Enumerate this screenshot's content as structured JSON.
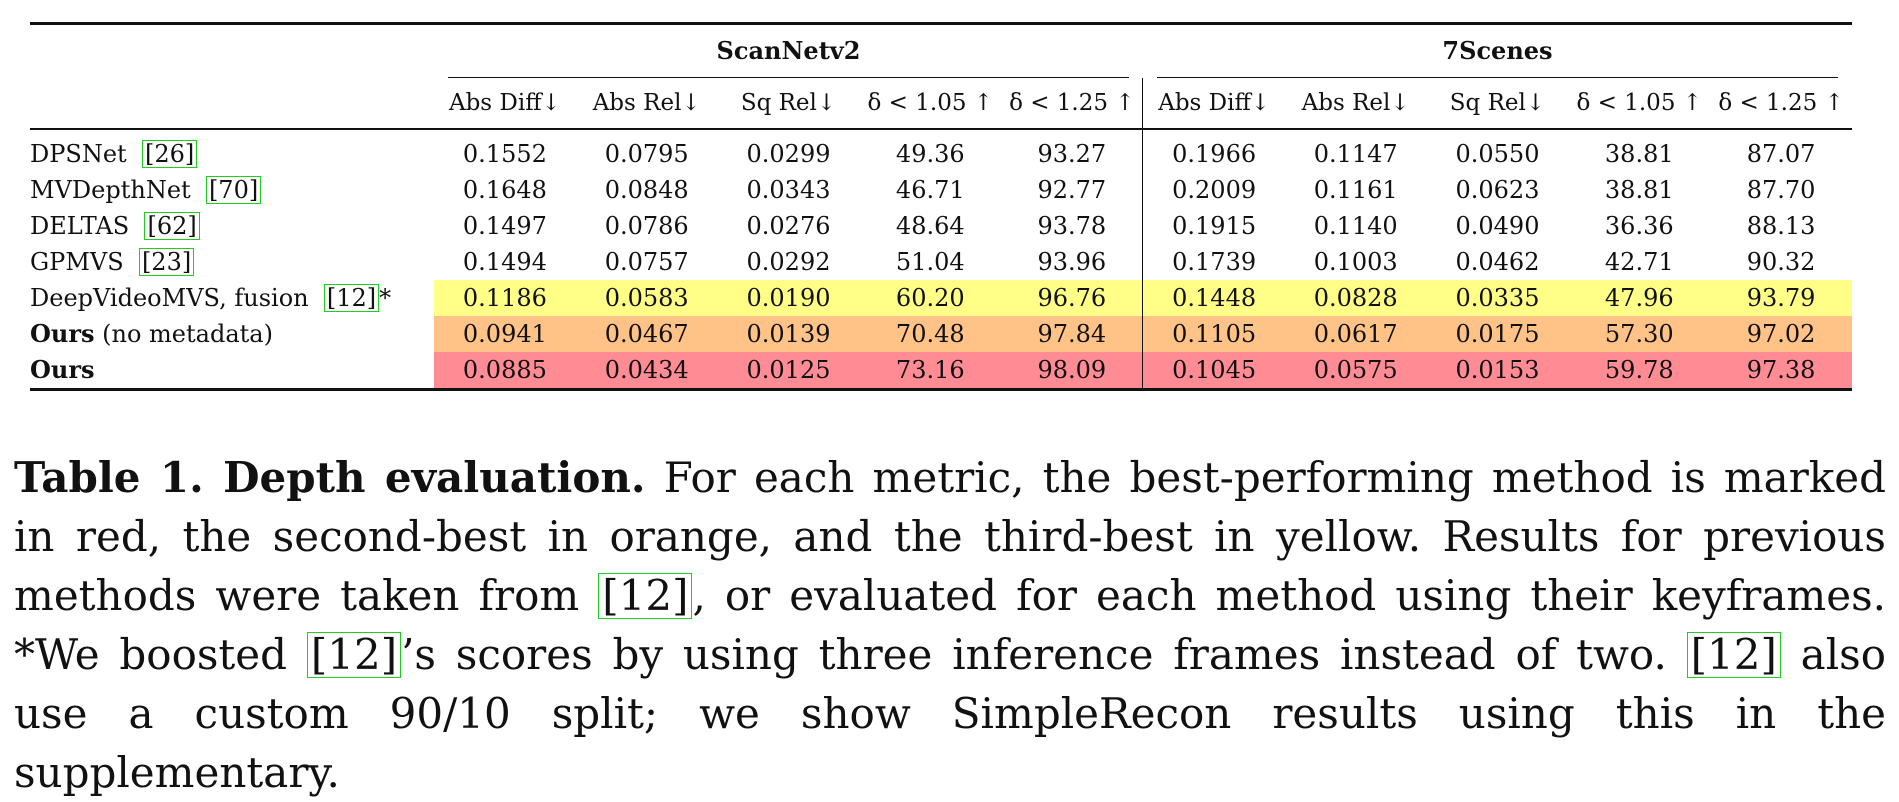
{
  "table": {
    "groups": [
      {
        "label": "ScanNetv2"
      },
      {
        "label": "7Scenes"
      }
    ],
    "columns": [
      "Abs Diff↓",
      "Abs Rel↓",
      "Sq Rel↓",
      "δ < 1.05 ↑",
      "δ < 1.25 ↑"
    ],
    "rows": [
      {
        "method": "DPSNet",
        "cite": "[26]",
        "suffix": "",
        "bold_part": "",
        "rest": "",
        "highlight": "none",
        "scannet": [
          "0.1552",
          "0.0795",
          "0.0299",
          "49.36",
          "93.27"
        ],
        "sevenscenes": [
          "0.1966",
          "0.1147",
          "0.0550",
          "38.81",
          "87.07"
        ]
      },
      {
        "method": "MVDepthNet",
        "cite": "[70]",
        "suffix": "",
        "bold_part": "",
        "rest": "",
        "highlight": "none",
        "scannet": [
          "0.1648",
          "0.0848",
          "0.0343",
          "46.71",
          "92.77"
        ],
        "sevenscenes": [
          "0.2009",
          "0.1161",
          "0.0623",
          "38.81",
          "87.70"
        ]
      },
      {
        "method": "DELTAS",
        "cite": "[62]",
        "suffix": "",
        "bold_part": "",
        "rest": "",
        "highlight": "none",
        "scannet": [
          "0.1497",
          "0.0786",
          "0.0276",
          "48.64",
          "93.78"
        ],
        "sevenscenes": [
          "0.1915",
          "0.1140",
          "0.0490",
          "36.36",
          "88.13"
        ]
      },
      {
        "method": "GPMVS",
        "cite": "[23]",
        "suffix": "",
        "bold_part": "",
        "rest": "",
        "highlight": "none",
        "scannet": [
          "0.1494",
          "0.0757",
          "0.0292",
          "51.04",
          "93.96"
        ],
        "sevenscenes": [
          "0.1739",
          "0.1003",
          "0.0462",
          "42.71",
          "90.32"
        ]
      },
      {
        "method": "DeepVideoMVS, fusion",
        "cite": "[12]",
        "suffix": "*",
        "bold_part": "",
        "rest": "",
        "highlight": "#ffff88",
        "scannet": [
          "0.1186",
          "0.0583",
          "0.0190",
          "60.20",
          "96.76"
        ],
        "sevenscenes": [
          "0.1448",
          "0.0828",
          "0.0335",
          "47.96",
          "93.79"
        ]
      },
      {
        "method": "",
        "cite": "",
        "suffix": "",
        "bold_part": "Ours",
        "rest": " (no metadata)",
        "highlight": "#ffc388",
        "scannet": [
          "0.0941",
          "0.0467",
          "0.0139",
          "70.48",
          "97.84"
        ],
        "sevenscenes": [
          "0.1105",
          "0.0617",
          "0.0175",
          "57.30",
          "97.02"
        ]
      },
      {
        "method": "",
        "cite": "",
        "suffix": "",
        "bold_part": "Ours",
        "rest": "",
        "highlight": "#ff8b95",
        "scannet": [
          "0.0885",
          "0.0434",
          "0.0125",
          "73.16",
          "98.09"
        ],
        "sevenscenes": [
          "0.1045",
          "0.0575",
          "0.0153",
          "59.78",
          "97.38"
        ]
      }
    ]
  },
  "caption": {
    "title": "Table 1. Depth evaluation.",
    "t1": " For each metric, the best-performing method is marked in red, the second-best in orange, and the third-best in yellow. Results for previous methods were taken from ",
    "cite1": "[12]",
    "t2": ", or evaluated for each method using their keyframes. *We boosted ",
    "cite2": "[12]",
    "t3": "’s scores by using three inference frames instead of two. ",
    "cite3": "[12]",
    "t4": " also use a custom 90/10 split; we show SimpleRecon results using this in the supplementary."
  }
}
